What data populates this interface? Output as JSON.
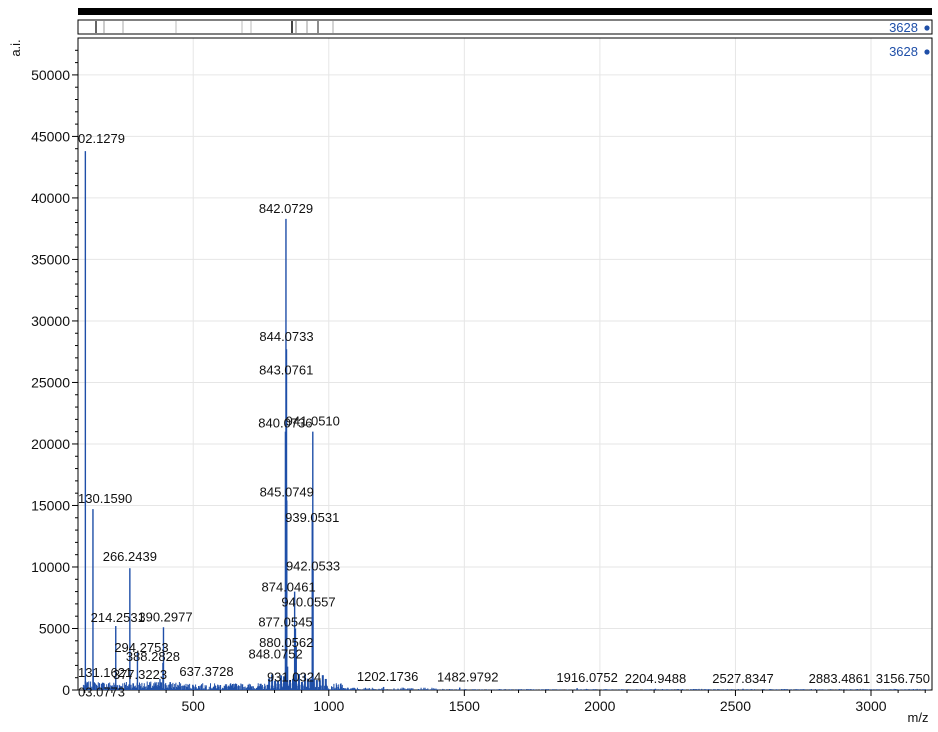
{
  "colors": {
    "spectrum": "#1f4fa8",
    "label_blue": "#1f4fa8",
    "grid": "#e6e6e6",
    "axis": "#000000"
  },
  "overview": {
    "label": "3628"
  },
  "spectrum_label": "3628",
  "chart_data": {
    "type": "line",
    "title": "",
    "xlabel": "m/z",
    "ylabel": "a.i.",
    "xlim": [
      75,
      3225
    ],
    "ylim": [
      0,
      53000
    ],
    "x_ticks": [
      500,
      1000,
      1500,
      2000,
      2500,
      3000
    ],
    "y_ticks": [
      0,
      5000,
      10000,
      15000,
      20000,
      25000,
      30000,
      35000,
      40000,
      45000,
      50000
    ],
    "grid": true,
    "series": [
      {
        "peaks": [
          {
            "mz": 102.1279,
            "intensity": 43800,
            "label": "02.1279"
          },
          {
            "mz": 130.159,
            "intensity": 14700,
            "label": "130.1590"
          },
          {
            "mz": 131.1621,
            "intensity": 1700,
            "label": "131.1621"
          },
          {
            "mz": 103.0773,
            "intensity": 700,
            "label": "03.0773"
          },
          {
            "mz": 214.2531,
            "intensity": 5200,
            "label": "214.2531"
          },
          {
            "mz": 266.2439,
            "intensity": 9900,
            "label": "266.2439"
          },
          {
            "mz": 294.2753,
            "intensity": 3100,
            "label": "294.2753"
          },
          {
            "mz": 390.2977,
            "intensity": 5100,
            "label": "390.2977"
          },
          {
            "mz": 388.2828,
            "intensity": 2200,
            "label": "388.2828"
          },
          {
            "mz": 377.3223,
            "intensity": 900,
            "label": "377.3223"
          },
          {
            "mz": 637.3728,
            "intensity": 500,
            "label": "637.3728"
          },
          {
            "mz": 842.0729,
            "intensity": 38300,
            "label": "842.0729"
          },
          {
            "mz": 844.0733,
            "intensity": 27700,
            "label": "844.0733"
          },
          {
            "mz": 843.0761,
            "intensity": 25000,
            "label": "843.0761"
          },
          {
            "mz": 840.0736,
            "intensity": 21000,
            "label": "840.0736"
          },
          {
            "mz": 941.051,
            "intensity": 21000,
            "label": "941.0510"
          },
          {
            "mz": 845.0749,
            "intensity": 15400,
            "label": "845.0749"
          },
          {
            "mz": 939.0531,
            "intensity": 13800,
            "label": "939.0531"
          },
          {
            "mz": 942.0533,
            "intensity": 9700,
            "label": "942.0533"
          },
          {
            "mz": 874.0461,
            "intensity": 8000,
            "label": "874.0461"
          },
          {
            "mz": 940.0557,
            "intensity": 6800,
            "label": "940.0557"
          },
          {
            "mz": 877.0545,
            "intensity": 5000,
            "label": "877.0545"
          },
          {
            "mz": 880.0562,
            "intensity": 3500,
            "label": "880.0562"
          },
          {
            "mz": 848.0752,
            "intensity": 1900,
            "label": "848.0752"
          },
          {
            "mz": 931.0324,
            "intensity": 700,
            "label": "931.0324"
          },
          {
            "mz": 1202.1736,
            "intensity": 250,
            "label": "1202.1736"
          },
          {
            "mz": 1482.9792,
            "intensity": 200,
            "label": "1482.9792"
          },
          {
            "mz": 1916.0752,
            "intensity": 150,
            "label": "1916.0752"
          },
          {
            "mz": 2204.9488,
            "intensity": 100,
            "label": "2204.9488"
          },
          {
            "mz": 2527.8347,
            "intensity": 100,
            "label": "2527.8347"
          },
          {
            "mz": 2883.4861,
            "intensity": 80,
            "label": "2883.4861"
          },
          {
            "mz": 3156.7503,
            "intensity": 80,
            "label": "3156.750"
          }
        ]
      }
    ]
  }
}
